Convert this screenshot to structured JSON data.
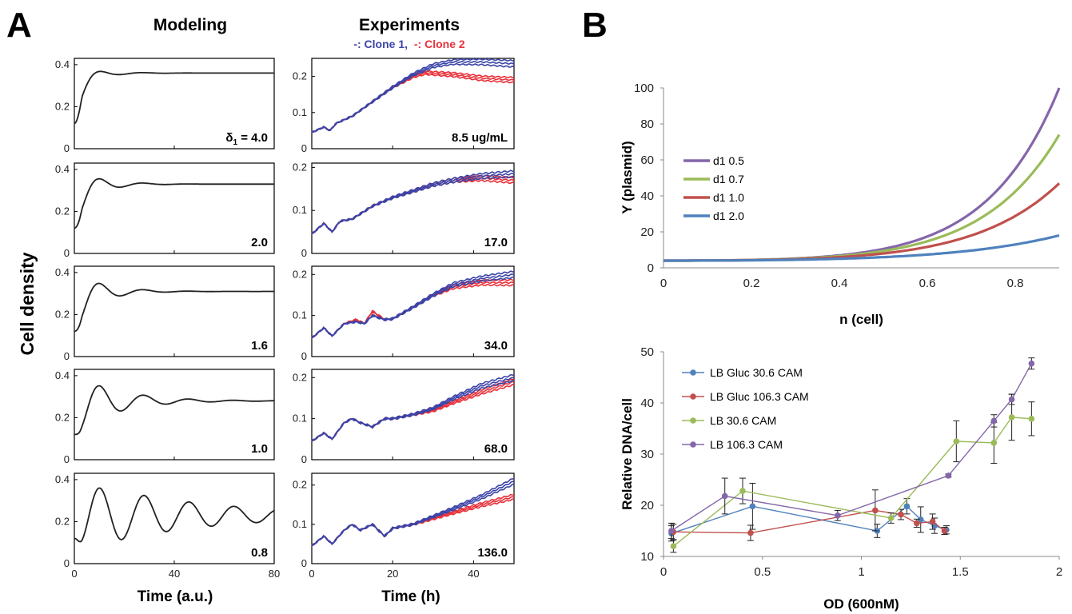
{
  "panels": {
    "A": "A",
    "B": "B",
    "modeling_title": "Modeling",
    "experiments_title": "Experiments",
    "legend_clone1": "-: Clone 1,",
    "legend_clone2": "-: Clone 2",
    "ylabel_left": "Cell density",
    "xlabel_modeling": "Time (a.u.)",
    "xlabel_experiments": "Time (h)",
    "delta_prefix": "δ",
    "delta_sub": "1",
    "delta_suffix": " = 4.0"
  },
  "colors": {
    "clone1": "#3b44a8",
    "clone2": "#e8313a",
    "model": "#222222",
    "d1_05": "#8466aa",
    "d1_07": "#9bbb59",
    "d1_10": "#c0504d",
    "d1_20": "#4f81bd"
  },
  "chart_data": [
    {
      "type": "line",
      "id": "modeling",
      "xlabel": "Time (a.u.)",
      "ylabel": "Cell density",
      "xlim": [
        0,
        80
      ],
      "ylim": [
        0,
        0.43
      ],
      "xticks": [
        0,
        40,
        80
      ],
      "yticks": [
        0,
        0.2,
        0.4
      ],
      "subplots": [
        {
          "label": "δ1 = 4.0",
          "peak": 0.39,
          "steady": 0.36,
          "period": 18,
          "decay": 8
        },
        {
          "label": "2.0",
          "peak": 0.38,
          "steady": 0.33,
          "period": 18,
          "decay": 9
        },
        {
          "label": "1.6",
          "peak": 0.37,
          "steady": 0.31,
          "period": 18,
          "decay": 10
        },
        {
          "label": "1.0",
          "peak": 0.35,
          "steady": 0.28,
          "period": 18,
          "decay": 16
        },
        {
          "label": "0.8",
          "peak": 0.31,
          "steady": 0.23,
          "period": 18,
          "decay": 45
        }
      ]
    },
    {
      "type": "line",
      "id": "experiments",
      "xlabel": "Time (h)",
      "xlim": [
        0,
        50
      ],
      "xticks": [
        0,
        20,
        40
      ],
      "legend": [
        "-: Clone 1,",
        "-: Clone 2"
      ],
      "subplots": [
        {
          "label": "8.5 ug/mL",
          "ylim": [
            0,
            0.25
          ],
          "yticks": [
            0,
            0.1,
            0.2
          ],
          "clone1": [
            [
              0,
              0.045
            ],
            [
              3,
              0.06
            ],
            [
              4.5,
              0.05
            ],
            [
              6,
              0.07
            ],
            [
              10,
              0.09
            ],
            [
              15,
              0.13
            ],
            [
              20,
              0.17
            ],
            [
              25,
              0.205
            ],
            [
              30,
              0.23
            ],
            [
              35,
              0.24
            ],
            [
              42,
              0.24
            ],
            [
              50,
              0.235
            ]
          ],
          "clone2": [
            [
              0,
              0.045
            ],
            [
              3,
              0.06
            ],
            [
              4.5,
              0.05
            ],
            [
              6,
              0.07
            ],
            [
              10,
              0.09
            ],
            [
              15,
              0.13
            ],
            [
              20,
              0.17
            ],
            [
              25,
              0.2
            ],
            [
              28,
              0.21
            ],
            [
              35,
              0.205
            ],
            [
              42,
              0.195
            ],
            [
              50,
              0.19
            ]
          ]
        },
        {
          "label": "17.0",
          "ylim": [
            0,
            0.21
          ],
          "yticks": [
            0,
            0.1,
            0.2
          ],
          "clone1": [
            [
              0,
              0.045
            ],
            [
              3,
              0.07
            ],
            [
              5,
              0.05
            ],
            [
              7,
              0.075
            ],
            [
              10,
              0.08
            ],
            [
              15,
              0.11
            ],
            [
              20,
              0.13
            ],
            [
              25,
              0.145
            ],
            [
              30,
              0.16
            ],
            [
              35,
              0.17
            ],
            [
              42,
              0.18
            ],
            [
              50,
              0.185
            ]
          ],
          "clone2": [
            [
              0,
              0.045
            ],
            [
              3,
              0.07
            ],
            [
              5,
              0.05
            ],
            [
              7,
              0.075
            ],
            [
              10,
              0.08
            ],
            [
              15,
              0.11
            ],
            [
              20,
              0.13
            ],
            [
              25,
              0.145
            ],
            [
              30,
              0.16
            ],
            [
              35,
              0.17
            ],
            [
              42,
              0.175
            ],
            [
              50,
              0.17
            ]
          ]
        },
        {
          "label": "34.0",
          "ylim": [
            0,
            0.22
          ],
          "yticks": [
            0,
            0.1,
            0.2
          ],
          "clone1": [
            [
              0,
              0.045
            ],
            [
              3,
              0.07
            ],
            [
              5,
              0.05
            ],
            [
              8,
              0.08
            ],
            [
              11,
              0.085
            ],
            [
              13,
              0.08
            ],
            [
              15,
              0.1
            ],
            [
              18,
              0.09
            ],
            [
              20,
              0.092
            ],
            [
              25,
              0.12
            ],
            [
              30,
              0.15
            ],
            [
              35,
              0.175
            ],
            [
              42,
              0.19
            ],
            [
              50,
              0.2
            ]
          ],
          "clone2": [
            [
              0,
              0.045
            ],
            [
              3,
              0.07
            ],
            [
              5,
              0.05
            ],
            [
              8,
              0.08
            ],
            [
              11,
              0.09
            ],
            [
              13,
              0.08
            ],
            [
              15,
              0.11
            ],
            [
              18,
              0.09
            ],
            [
              20,
              0.092
            ],
            [
              25,
              0.12
            ],
            [
              30,
              0.15
            ],
            [
              35,
              0.17
            ],
            [
              42,
              0.18
            ],
            [
              50,
              0.18
            ]
          ]
        },
        {
          "label": "68.0",
          "ylim": [
            0,
            0.22
          ],
          "yticks": [
            0,
            0.1,
            0.2
          ],
          "clone1": [
            [
              0,
              0.045
            ],
            [
              3,
              0.065
            ],
            [
              5,
              0.05
            ],
            [
              8,
              0.09
            ],
            [
              10,
              0.1
            ],
            [
              12,
              0.09
            ],
            [
              15,
              0.08
            ],
            [
              18,
              0.1
            ],
            [
              20,
              0.1
            ],
            [
              25,
              0.11
            ],
            [
              30,
              0.125
            ],
            [
              35,
              0.15
            ],
            [
              42,
              0.18
            ],
            [
              50,
              0.2
            ]
          ],
          "clone2": [
            [
              0,
              0.045
            ],
            [
              3,
              0.065
            ],
            [
              5,
              0.05
            ],
            [
              8,
              0.09
            ],
            [
              10,
              0.1
            ],
            [
              12,
              0.09
            ],
            [
              15,
              0.08
            ],
            [
              18,
              0.1
            ],
            [
              20,
              0.1
            ],
            [
              25,
              0.11
            ],
            [
              30,
              0.12
            ],
            [
              35,
              0.14
            ],
            [
              42,
              0.165
            ],
            [
              50,
              0.19
            ]
          ]
        },
        {
          "label": "136.0",
          "ylim": [
            0,
            0.23
          ],
          "yticks": [
            0,
            0.1,
            0.2
          ],
          "clone1": [
            [
              0,
              0.045
            ],
            [
              3,
              0.07
            ],
            [
              5,
              0.05
            ],
            [
              8,
              0.085
            ],
            [
              10,
              0.1
            ],
            [
              12,
              0.085
            ],
            [
              15,
              0.1
            ],
            [
              18,
              0.07
            ],
            [
              20,
              0.09
            ],
            [
              25,
              0.1
            ],
            [
              30,
              0.12
            ],
            [
              35,
              0.14
            ],
            [
              42,
              0.17
            ],
            [
              50,
              0.21
            ]
          ],
          "clone2": [
            [
              0,
              0.045
            ],
            [
              3,
              0.07
            ],
            [
              5,
              0.05
            ],
            [
              8,
              0.085
            ],
            [
              10,
              0.1
            ],
            [
              12,
              0.085
            ],
            [
              15,
              0.1
            ],
            [
              18,
              0.07
            ],
            [
              20,
              0.09
            ],
            [
              25,
              0.1
            ],
            [
              30,
              0.115
            ],
            [
              35,
              0.13
            ],
            [
              42,
              0.15
            ],
            [
              50,
              0.17
            ]
          ]
        }
      ]
    },
    {
      "type": "line",
      "id": "plasmid",
      "xlabel": "n (cell)",
      "ylabel": "Y (plasmid)",
      "xlim": [
        0,
        0.9
      ],
      "ylim": [
        0,
        100
      ],
      "xticks": [
        0,
        0.2,
        0.4,
        0.6,
        0.8
      ],
      "yticks": [
        0,
        20,
        40,
        60,
        80,
        100
      ],
      "legend_position": "top-left",
      "series": [
        {
          "name": "d1  0.5",
          "end": 100
        },
        {
          "name": "d1  0.7",
          "end": 74
        },
        {
          "name": "d1  1.0",
          "end": 47
        },
        {
          "name": "d1  2.0",
          "end": 18
        }
      ]
    },
    {
      "type": "line",
      "id": "dna",
      "xlabel": "OD (600nM)",
      "ylabel": "Relative DNA/cell",
      "xlim": [
        0,
        2
      ],
      "ylim": [
        10,
        50
      ],
      "xticks": [
        0,
        0.5,
        1,
        1.5,
        2
      ],
      "yticks": [
        10,
        20,
        30,
        40,
        50
      ],
      "legend_position": "top-left",
      "series": [
        {
          "name": "LB Gluc 30.6 CAM",
          "points": [
            [
              0.04,
              14.5,
              1.5
            ],
            [
              0.45,
              19.8,
              4.5
            ],
            [
              1.08,
              15.0,
              1.3
            ],
            [
              1.23,
              19.8,
              1.5
            ],
            [
              1.3,
              17.2,
              2.5
            ],
            [
              1.37,
              16.0,
              1.5
            ],
            [
              1.43,
              15.2,
              0.8
            ]
          ]
        },
        {
          "name": "LB Gluc 106.3 CAM",
          "points": [
            [
              0.05,
              14.8,
              1.5
            ],
            [
              0.44,
              14.6,
              1.5
            ],
            [
              1.07,
              19.0,
              4.0
            ],
            [
              1.2,
              18.2,
              1.0
            ],
            [
              1.28,
              16.5,
              0.8
            ],
            [
              1.36,
              16.8,
              1.5
            ],
            [
              1.42,
              15.0,
              0.7
            ]
          ]
        },
        {
          "name": "LB 30.6 CAM",
          "points": [
            [
              0.05,
              12.0,
              1.2
            ],
            [
              0.4,
              22.8,
              2.5
            ],
            [
              1.15,
              17.5,
              1.0
            ],
            [
              1.48,
              32.5,
              4.0
            ],
            [
              1.67,
              32.2,
              4.0
            ],
            [
              1.76,
              37.2,
              4.5
            ],
            [
              1.86,
              36.9,
              3.3
            ]
          ]
        },
        {
          "name": "LB 106.3 CAM",
          "points": [
            [
              0.04,
              15.0,
              1.5
            ],
            [
              0.31,
              21.8,
              3.5
            ],
            [
              0.88,
              18.0,
              1.0
            ],
            [
              1.44,
              25.8,
              0.3
            ],
            [
              1.67,
              36.5,
              1.2
            ],
            [
              1.76,
              40.7,
              1.0
            ],
            [
              1.86,
              47.7,
              1.1
            ]
          ]
        }
      ]
    }
  ]
}
